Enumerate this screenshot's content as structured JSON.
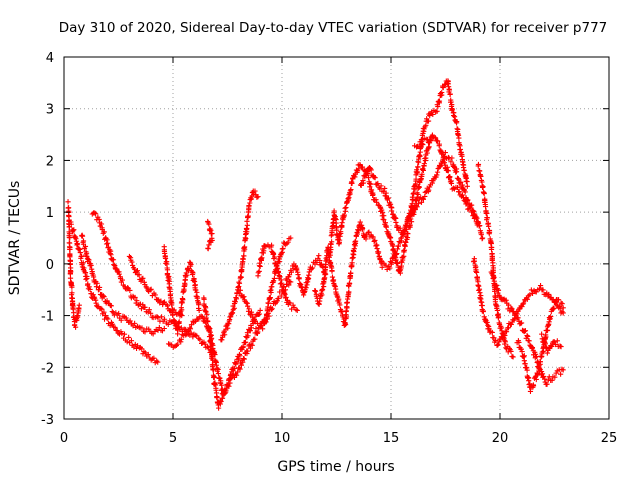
{
  "chart_data": {
    "type": "scatter",
    "title": "Day 310 of 2020, Sidereal Day-to-day VTEC variation (SDTVAR) for receiver p777",
    "xlabel": "GPS time / hours",
    "ylabel": "SDTVAR / TECUs",
    "xlim": [
      0,
      25
    ],
    "ylim": [
      -3,
      4
    ],
    "xticks": [
      0,
      5,
      10,
      15,
      20,
      25
    ],
    "yticks": [
      -3,
      -2,
      -1,
      0,
      1,
      2,
      3,
      4
    ],
    "xtick_labels": [
      "0",
      "5",
      "10",
      "15",
      "20",
      "25"
    ],
    "ytick_labels": [
      "-3",
      "-2",
      "-1",
      "0",
      "1",
      "2",
      "3",
      "4"
    ],
    "grid": true,
    "marker": "+",
    "series": [
      {
        "name": "SDTVAR",
        "color": "#ff0000",
        "tracks": [
          [
            [
              0.2,
              1.15
            ],
            [
              0.25,
              0.5
            ],
            [
              0.3,
              -0.2
            ],
            [
              0.4,
              -0.8
            ],
            [
              0.5,
              -1.2
            ],
            [
              0.6,
              -1.05
            ],
            [
              0.7,
              -0.8
            ]
          ],
          [
            [
              0.3,
              0.75
            ],
            [
              0.5,
              0.55
            ],
            [
              0.8,
              0.1
            ],
            [
              1.1,
              -0.4
            ],
            [
              1.5,
              -0.8
            ],
            [
              2.0,
              -1.1
            ],
            [
              2.6,
              -1.35
            ],
            [
              3.2,
              -1.55
            ],
            [
              3.8,
              -1.75
            ],
            [
              4.3,
              -1.9
            ]
          ],
          [
            [
              0.8,
              0.55
            ],
            [
              1.1,
              0.1
            ],
            [
              1.4,
              -0.3
            ],
            [
              1.8,
              -0.65
            ],
            [
              2.3,
              -0.95
            ],
            [
              2.9,
              -1.1
            ],
            [
              3.5,
              -1.25
            ],
            [
              4.1,
              -1.3
            ],
            [
              4.6,
              -1.25
            ]
          ],
          [
            [
              1.3,
              1.0
            ],
            [
              1.6,
              0.85
            ],
            [
              1.9,
              0.5
            ],
            [
              2.2,
              0.1
            ],
            [
              2.6,
              -0.3
            ],
            [
              3.1,
              -0.6
            ],
            [
              3.6,
              -0.85
            ],
            [
              4.1,
              -1.0
            ],
            [
              4.7,
              -1.1
            ],
            [
              5.2,
              -1.2
            ],
            [
              5.7,
              -1.35
            ],
            [
              6.3,
              -1.5
            ],
            [
              6.8,
              -1.7
            ]
          ],
          [
            [
              3.0,
              0.1
            ],
            [
              3.4,
              -0.2
            ],
            [
              3.9,
              -0.5
            ],
            [
              4.4,
              -0.7
            ],
            [
              4.9,
              -0.9
            ],
            [
              5.4,
              -1.0
            ]
          ],
          [
            [
              4.6,
              0.3
            ],
            [
              4.8,
              -0.3
            ],
            [
              5.0,
              -1.0
            ],
            [
              5.2,
              -1.3
            ],
            [
              5.4,
              -0.8
            ],
            [
              5.6,
              -0.2
            ],
            [
              5.8,
              0.0
            ],
            [
              6.0,
              -0.4
            ],
            [
              6.2,
              -0.9
            ]
          ],
          [
            [
              4.8,
              -1.6
            ],
            [
              5.3,
              -1.5
            ],
            [
              5.8,
              -1.2
            ],
            [
              6.3,
              -1.0
            ],
            [
              6.7,
              -1.3
            ],
            [
              7.0,
              -2.0
            ],
            [
              7.3,
              -2.5
            ],
            [
              7.6,
              -2.3
            ],
            [
              8.0,
              -2.05
            ],
            [
              8.4,
              -1.7
            ],
            [
              8.9,
              -1.3
            ],
            [
              9.4,
              -0.95
            ],
            [
              9.9,
              -0.6
            ],
            [
              10.4,
              -0.35
            ]
          ],
          [
            [
              6.4,
              -0.7
            ],
            [
              6.7,
              -1.4
            ],
            [
              6.9,
              -2.3
            ],
            [
              7.1,
              -2.75
            ],
            [
              7.4,
              -2.45
            ],
            [
              7.8,
              -2.0
            ],
            [
              8.2,
              -1.6
            ],
            [
              8.6,
              -1.2
            ],
            [
              9.0,
              -0.9
            ]
          ],
          [
            [
              6.6,
              0.8
            ],
            [
              6.8,
              0.5
            ],
            [
              6.6,
              0.3
            ]
          ],
          [
            [
              7.2,
              -1.5
            ],
            [
              7.5,
              -1.2
            ],
            [
              7.8,
              -0.8
            ],
            [
              8.1,
              -0.3
            ],
            [
              8.3,
              0.4
            ],
            [
              8.5,
              1.15
            ],
            [
              8.7,
              1.4
            ],
            [
              8.9,
              1.3
            ]
          ],
          [
            [
              8.0,
              -0.5
            ],
            [
              8.4,
              -0.8
            ],
            [
              8.8,
              -1.2
            ],
            [
              9.2,
              -1.2
            ],
            [
              9.5,
              -0.5
            ],
            [
              9.8,
              0.0
            ],
            [
              10.1,
              0.4
            ],
            [
              10.4,
              0.5
            ]
          ],
          [
            [
              8.9,
              -0.2
            ],
            [
              9.2,
              0.4
            ],
            [
              9.5,
              0.35
            ],
            [
              9.9,
              -0.3
            ],
            [
              10.3,
              -0.8
            ],
            [
              10.7,
              -0.9
            ]
          ],
          [
            [
              10.2,
              -0.3
            ],
            [
              10.6,
              0.0
            ],
            [
              11.0,
              -0.6
            ],
            [
              11.3,
              -0.1
            ],
            [
              11.7,
              0.1
            ],
            [
              12.0,
              -0.2
            ]
          ],
          [
            [
              11.5,
              -0.5
            ],
            [
              11.7,
              -0.8
            ],
            [
              11.9,
              -0.4
            ],
            [
              12.1,
              0.3
            ],
            [
              12.3,
              -0.2
            ],
            [
              12.5,
              -0.6
            ],
            [
              12.7,
              -0.9
            ],
            [
              12.9,
              -1.2
            ],
            [
              13.0,
              -0.7
            ],
            [
              13.2,
              0.0
            ],
            [
              13.4,
              0.5
            ],
            [
              13.6,
              0.8
            ],
            [
              13.8,
              0.5
            ],
            [
              14.0,
              0.6
            ],
            [
              14.3,
              0.4
            ],
            [
              14.6,
              -0.05
            ],
            [
              14.9,
              -0.05
            ],
            [
              15.2,
              0.2
            ],
            [
              15.5,
              0.5
            ],
            [
              15.8,
              0.9
            ],
            [
              16.1,
              1.1
            ],
            [
              16.5,
              1.3
            ],
            [
              16.9,
              1.6
            ],
            [
              17.2,
              1.85
            ],
            [
              17.5,
              2.1
            ],
            [
              17.8,
              2.0
            ],
            [
              18.1,
              1.65
            ],
            [
              18.5,
              1.25
            ],
            [
              18.9,
              0.9
            ],
            [
              19.2,
              0.5
            ]
          ],
          [
            [
              12.2,
              0.2
            ],
            [
              12.4,
              1.0
            ],
            [
              12.6,
              0.4
            ],
            [
              12.8,
              0.9
            ],
            [
              13.0,
              1.2
            ],
            [
              13.3,
              1.7
            ],
            [
              13.6,
              1.95
            ],
            [
              13.9,
              1.8
            ],
            [
              14.2,
              1.25
            ],
            [
              14.5,
              1.1
            ],
            [
              14.8,
              0.7
            ],
            [
              15.1,
              0.3
            ],
            [
              15.4,
              -0.2
            ],
            [
              15.7,
              0.5
            ],
            [
              16.0,
              0.95
            ],
            [
              16.3,
              1.5
            ],
            [
              16.6,
              2.1
            ],
            [
              16.9,
              2.5
            ],
            [
              17.2,
              2.3
            ],
            [
              17.5,
              1.9
            ],
            [
              17.8,
              1.5
            ],
            [
              18.1,
              1.4
            ],
            [
              18.4,
              1.2
            ],
            [
              18.7,
              1.0
            ],
            [
              19.0,
              0.8
            ]
          ],
          [
            [
              13.6,
              1.5
            ],
            [
              14.0,
              1.85
            ],
            [
              14.3,
              1.6
            ],
            [
              14.7,
              1.4
            ],
            [
              15.0,
              1.1
            ],
            [
              15.3,
              0.7
            ],
            [
              15.6,
              0.6
            ],
            [
              15.9,
              1.0
            ],
            [
              16.2,
              1.8
            ],
            [
              16.5,
              2.6
            ],
            [
              16.8,
              2.9
            ],
            [
              17.1,
              3.0
            ],
            [
              17.4,
              3.45
            ],
            [
              17.6,
              3.55
            ],
            [
              17.8,
              3.0
            ],
            [
              18.0,
              2.7
            ],
            [
              18.2,
              2.2
            ],
            [
              18.5,
              1.5
            ]
          ],
          [
            [
              16.1,
              2.25
            ],
            [
              16.4,
              2.35
            ],
            [
              16.8,
              2.4
            ]
          ],
          [
            [
              19.0,
              1.9
            ],
            [
              19.2,
              1.5
            ],
            [
              19.4,
              0.9
            ],
            [
              19.6,
              0.4
            ],
            [
              19.7,
              -0.2
            ],
            [
              19.8,
              -0.7
            ],
            [
              20.0,
              -1.2
            ],
            [
              20.3,
              -1.6
            ],
            [
              20.6,
              -1.8
            ]
          ],
          [
            [
              18.8,
              0.1
            ],
            [
              19.0,
              -0.4
            ],
            [
              19.2,
              -0.9
            ],
            [
              19.5,
              -1.3
            ],
            [
              19.9,
              -1.55
            ],
            [
              20.3,
              -1.3
            ],
            [
              20.8,
              -0.95
            ],
            [
              21.3,
              -0.6
            ],
            [
              21.8,
              -0.45
            ],
            [
              22.2,
              -0.6
            ],
            [
              22.6,
              -0.8
            ],
            [
              22.9,
              -0.95
            ]
          ],
          [
            [
              19.6,
              -0.2
            ],
            [
              20.0,
              -0.6
            ],
            [
              20.5,
              -0.9
            ],
            [
              21.0,
              -1.2
            ],
            [
              21.5,
              -1.65
            ],
            [
              21.8,
              -2.0
            ],
            [
              22.1,
              -2.3
            ],
            [
              22.5,
              -2.15
            ],
            [
              22.9,
              -2.05
            ]
          ],
          [
            [
              20.8,
              -1.5
            ],
            [
              21.1,
              -1.8
            ],
            [
              21.4,
              -2.45
            ],
            [
              21.7,
              -2.15
            ],
            [
              22.0,
              -1.6
            ],
            [
              22.3,
              -1.0
            ],
            [
              22.6,
              -0.7
            ],
            [
              22.9,
              -0.85
            ]
          ],
          [
            [
              21.9,
              -1.4
            ],
            [
              22.2,
              -1.7
            ],
            [
              22.5,
              -1.5
            ],
            [
              22.8,
              -1.6
            ]
          ]
        ]
      }
    ]
  }
}
